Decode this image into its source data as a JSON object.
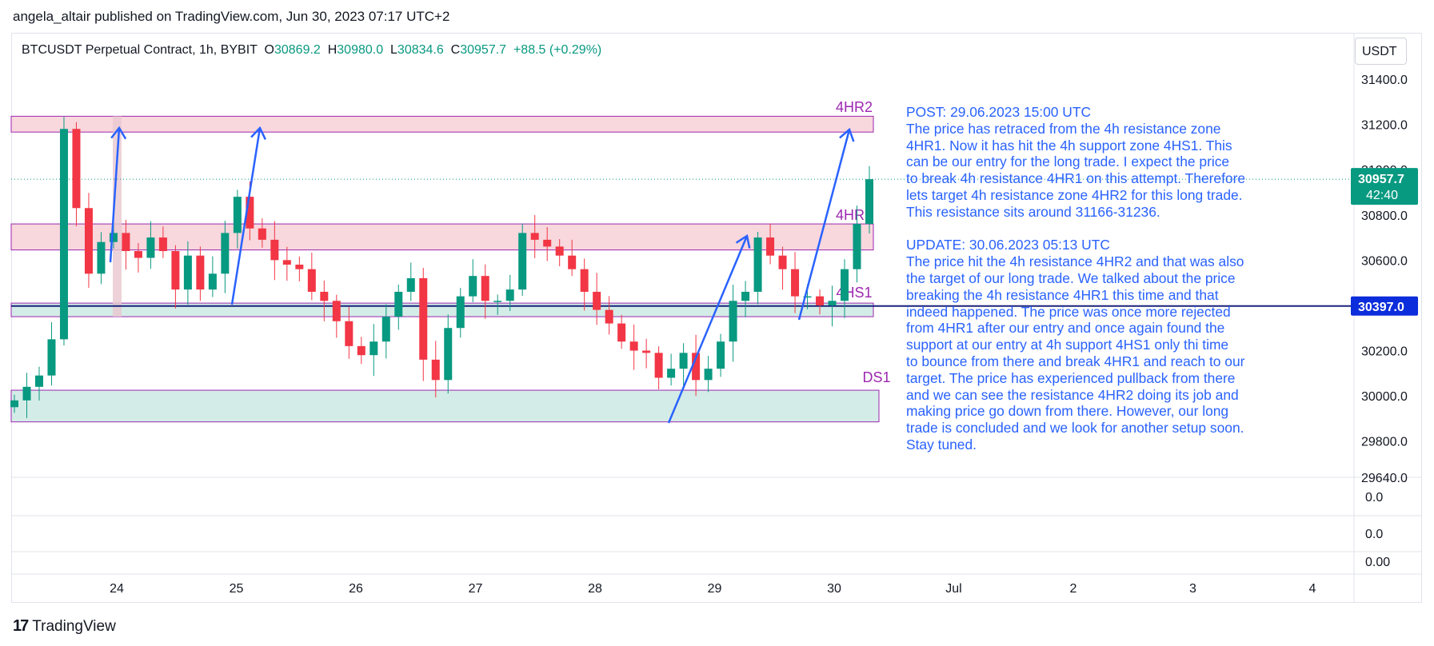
{
  "header": {
    "published_line": "angela_altair published on TradingView.com, Jun 30, 2023 07:17 UTC+2"
  },
  "chart_header": {
    "symbol": "BTCUSDT Perpetual Contract, 1h, BYBIT",
    "open_label": "O",
    "open_value": "30869.2",
    "high_label": "H",
    "high_value": "30980.0",
    "low_label": "L",
    "low_value": "30834.6",
    "close_label": "C",
    "close_value": "30957.7",
    "change": "+88.5 (+0.29%)",
    "currency": "USDT"
  },
  "price_scale": {
    "ticks": [
      "31400.0",
      "31200.0",
      "31000.0",
      "30800.0",
      "30600.0",
      "30200.0",
      "30000.0",
      "29800.0",
      "29640.0"
    ],
    "current_price": "30957.7",
    "countdown": "42:40",
    "line_price": "30397.0"
  },
  "lower_panes": {
    "values": [
      "0.0",
      "0.0",
      "0.00"
    ]
  },
  "time_axis": {
    "labels": [
      "24",
      "25",
      "26",
      "27",
      "28",
      "29",
      "30",
      "Jul",
      "2",
      "3",
      "4"
    ]
  },
  "zones": {
    "labels": [
      "4HR2",
      "4HR1",
      "4HS1",
      "DS1"
    ]
  },
  "annotation": {
    "text": "POST: 29.06.2023 15:00 UTC\nThe price has retraced from the 4h resistance zone\n4HR1. Now it has hit the 4h support zone 4HS1. This\ncan be our entry for the long trade. I expect the price\nto break 4h resistance 4HR1 on this attempt. Therefore\nlets target 4h resistance zone 4HR2 for this long trade.\nThis resistance sits around 31166-31236.\n\nUPDATE: 30.06.2023 05:13 UTC\nThe price hit the 4h resistance 4HR2 and that was also\nthe target of our long trade. We talked about the price\nbreaking the 4h resistance 4HR1 this time and that\nindeed happened. The price was once more rejected\nfrom 4HR1 after our entry and once again found the\nsupport at our entry at 4h support 4HS1 only thi time\nto bounce from there and break 4HR1 and reach to our\ntarget. The price has experienced pullback from there\nand we can see the resistance 4HR2 doing its job and\nmaking price go down from there. However, our long\ntrade is concluded and we look for another setup soon.\nStay tuned."
  },
  "footer": {
    "brand": "TradingView",
    "logo_glyph": "17"
  },
  "colors": {
    "up": "#089981",
    "down": "#f23645",
    "resistance_fill": "#f8d7dd",
    "support_fill": "#d4ece7",
    "zone_border": "#9c27b0",
    "arrow": "#2962ff",
    "hline": "#1a237e",
    "label_purple": "#9c27b0"
  },
  "chart_data": {
    "type": "candlestick",
    "title": "BTCUSDT Perpetual Contract, 1h, BYBIT",
    "x_axis": [
      "24",
      "25",
      "26",
      "27",
      "28",
      "29",
      "30",
      "Jul",
      "2",
      "3",
      "4"
    ],
    "y_range": [
      29640,
      31460
    ],
    "last_candle": {
      "open": 30869.2,
      "high": 30980.0,
      "low": 30834.6,
      "close": 30957.7
    },
    "zones": [
      {
        "name": "4HR2",
        "kind": "resistance",
        "low": 31166,
        "high": 31236
      },
      {
        "name": "4HR1",
        "kind": "resistance",
        "low": 30645,
        "high": 30760
      },
      {
        "name": "4HS1",
        "kind": "support",
        "low": 30350,
        "high": 30410
      },
      {
        "name": "DS1",
        "kind": "support",
        "low": 29885,
        "high": 30025
      }
    ],
    "horizontal_line": 30397.0,
    "closes_approx": [
      29980,
      30040,
      30090,
      30250,
      31180,
      30830,
      30540,
      30680,
      30720,
      30640,
      30610,
      30700,
      30640,
      30470,
      30620,
      30470,
      30540,
      30720,
      30880,
      30740,
      30690,
      30600,
      30580,
      30560,
      30460,
      30420,
      30330,
      30220,
      30180,
      30240,
      30350,
      30460,
      30520,
      30160,
      30070,
      30300,
      30440,
      30530,
      30420,
      30420,
      30470,
      30720,
      30690,
      30660,
      30620,
      30560,
      30460,
      30380,
      30320,
      30240,
      30200,
      30190,
      30080,
      30120,
      30190,
      30070,
      30120,
      30240,
      30420,
      30460,
      30700,
      30620,
      30560,
      30440,
      30440,
      30400,
      30420,
      30560,
      30760,
      30957.7
    ]
  }
}
